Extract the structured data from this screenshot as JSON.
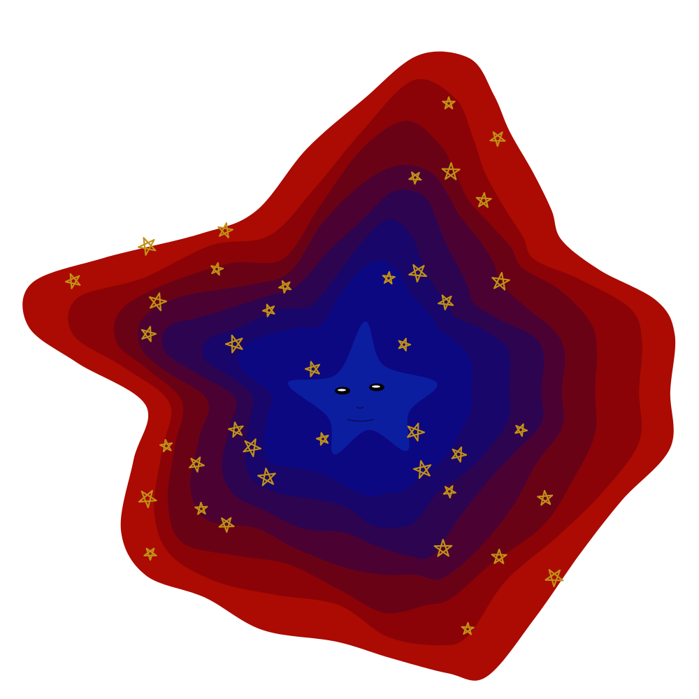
{
  "artwork": {
    "subject": "star-face-illustration",
    "background_color": "#ffffff",
    "layer_colors": [
      "#ab0b02",
      "#8b0307",
      "#6a0216",
      "#4b0232",
      "#2d0450",
      "#18066a",
      "#0c0882",
      "#0a0c95"
    ],
    "center_star_color": "#0c1ea0",
    "face": {
      "eye_color": "#000000",
      "eye_highlight_color": "#ffffff",
      "mouth_color": "#0a0e60"
    },
    "sparkle_color": "#c29116",
    "sparkle_icon": "scribbled-star-icon"
  }
}
